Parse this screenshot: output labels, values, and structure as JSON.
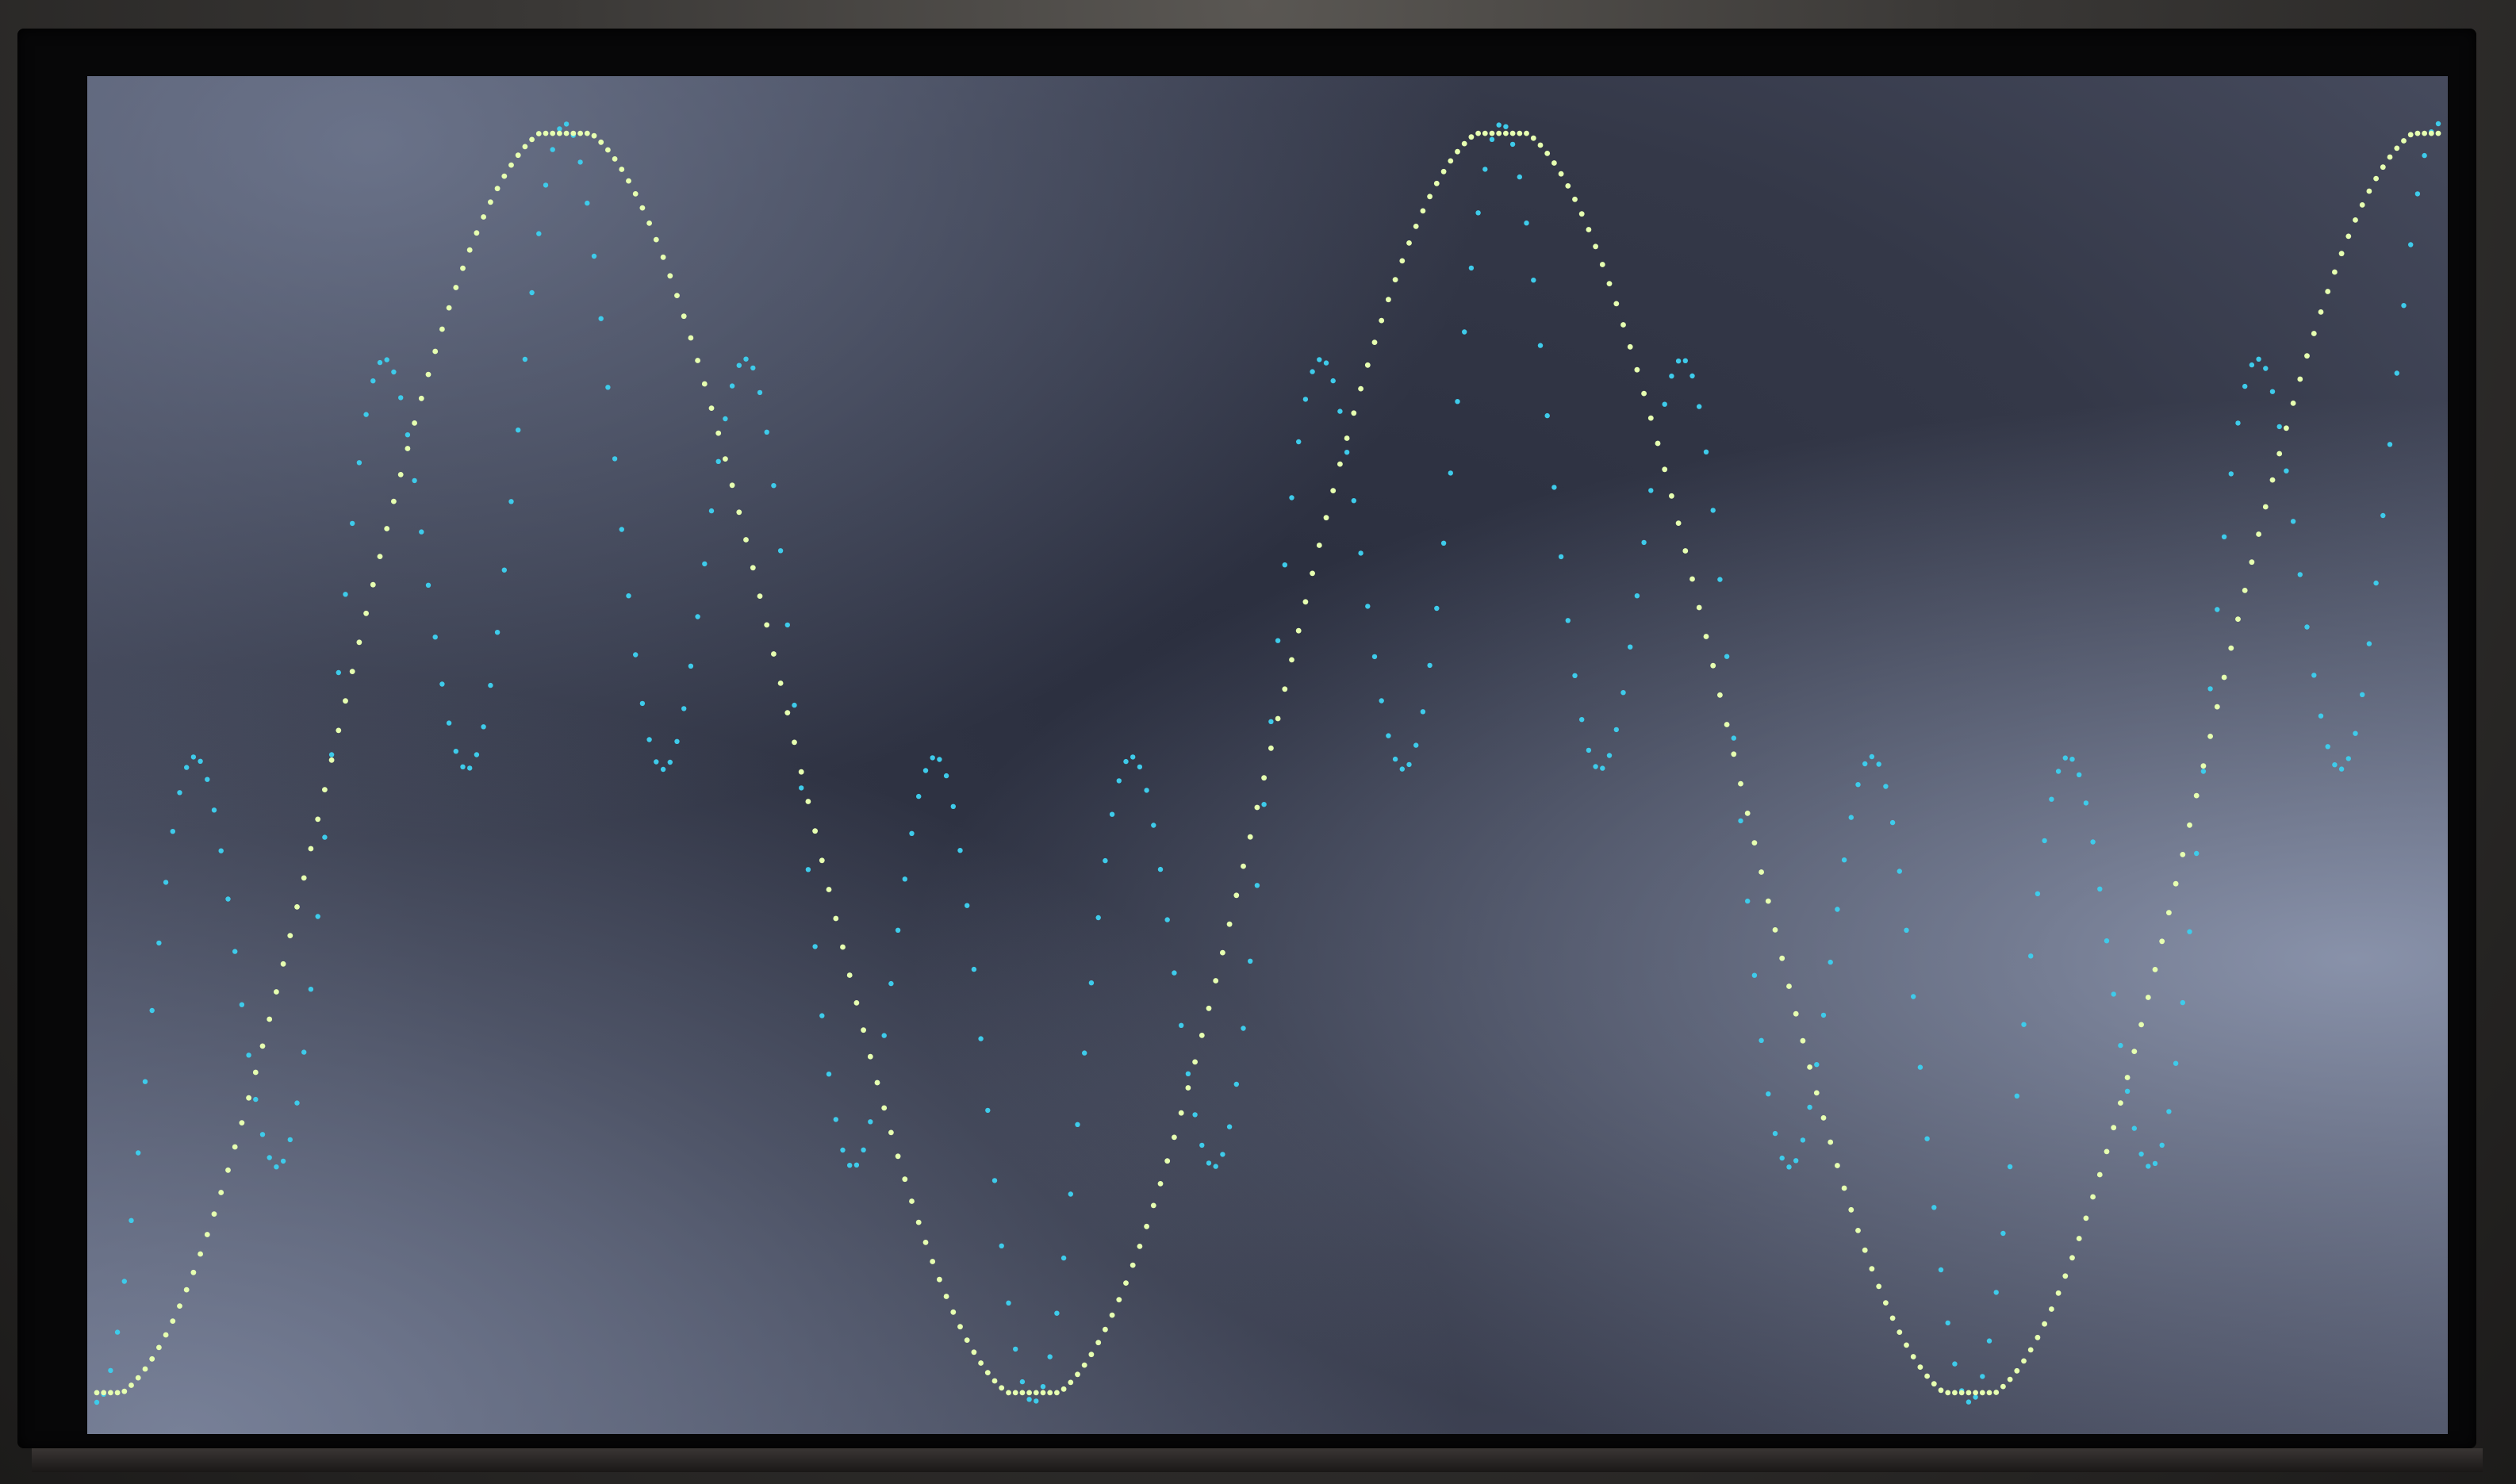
{
  "chart_data": {
    "type": "scatter",
    "title": "",
    "xlabel": "",
    "ylabel": "",
    "grid": false,
    "legend": "none",
    "xlim": [
      0,
      2.5
    ],
    "ylim": [
      -1,
      1
    ],
    "series": [
      {
        "id": "trace-green",
        "color": "#e6ffb0",
        "sample_count": 340,
        "wave": "sine",
        "cycles_shown": 2.5,
        "amplitude": 1.0,
        "clipped_peaks": true
      },
      {
        "id": "trace-cyan",
        "color": "#3ecbea",
        "sample_count": 340,
        "wave": "sine_sum",
        "cycles_shown": 2.5,
        "components": [
          {
            "harmonic": 1,
            "amplitude": 0.55
          },
          {
            "harmonic": 5,
            "amplitude": 0.45
          }
        ]
      }
    ]
  }
}
